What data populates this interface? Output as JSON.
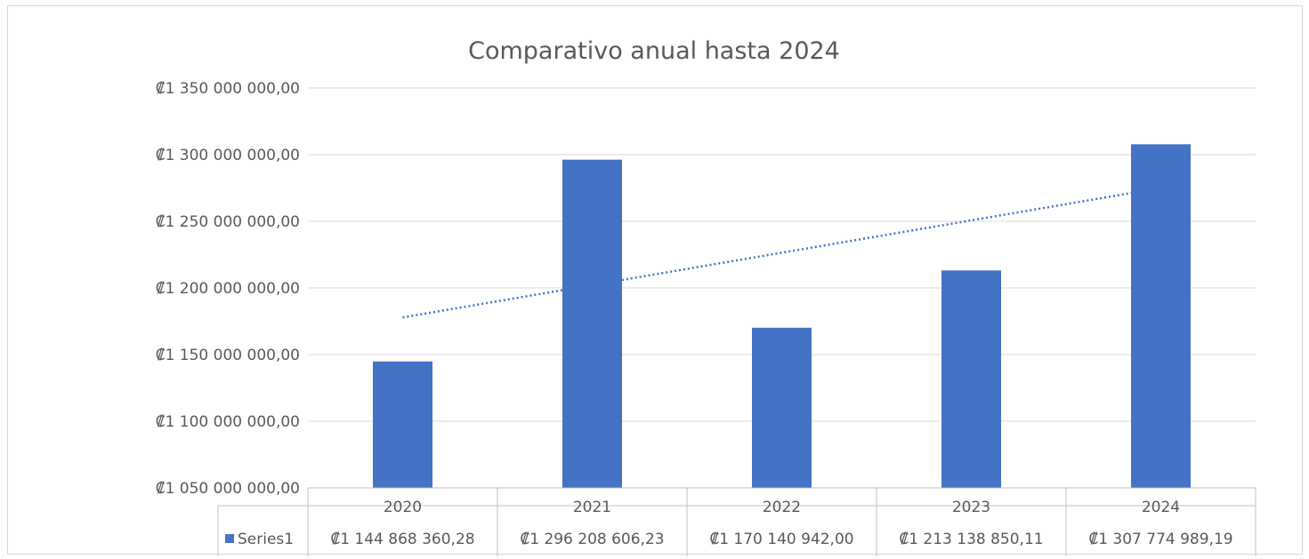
{
  "chart_data": {
    "type": "bar",
    "title": "Comparativo anual hasta 2024",
    "categories": [
      "2020",
      "2021",
      "2022",
      "2023",
      "2024"
    ],
    "series": [
      {
        "name": "Series1",
        "values": [
          1144868360.28,
          1296208606.23,
          1170140942.0,
          1213138850.11,
          1307774989.19
        ],
        "value_labels": [
          "₡1 144 868 360,28",
          "₡1 296 208 606,23",
          "₡1 170 140 942,00",
          "₡1 213 138 850,11",
          "₡1 307 774 989,19"
        ],
        "color": "#4472c4"
      }
    ],
    "trendline": {
      "type": "linear",
      "style": "dotted",
      "color": "#4472c4"
    },
    "ylim": [
      1050000000,
      1350000000
    ],
    "yticks": [
      1050000000,
      1100000000,
      1150000000,
      1200000000,
      1250000000,
      1300000000,
      1350000000
    ],
    "ytick_labels": [
      "₡1 050 000 000,00",
      "₡1 100 000 000,00",
      "₡1 150 000 000,00",
      "₡1 200 000 000,00",
      "₡1 250 000 000,00",
      "₡1 300 000 000,00",
      "₡1 350 000 000,00"
    ],
    "grid": true,
    "legend": "data-table",
    "xlabel": "",
    "ylabel": ""
  }
}
